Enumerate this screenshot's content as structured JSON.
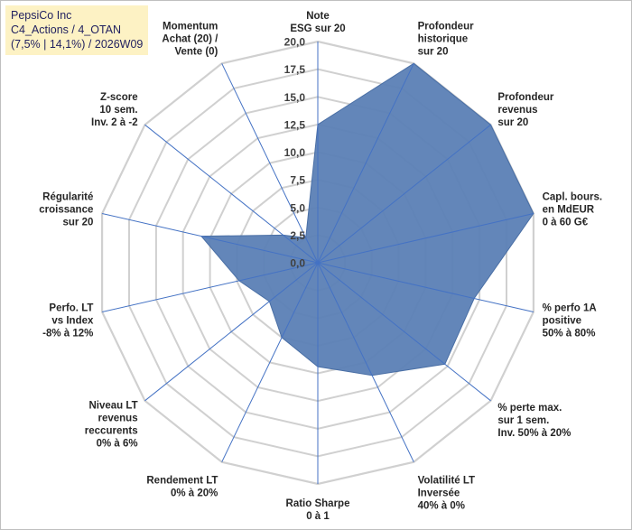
{
  "title_box": {
    "line1": "PepsiCo Inc",
    "line2": "C4_Actions / 4_OTAN",
    "line3": "(7,5% | 14,1%) / 2026W09"
  },
  "chart_data": {
    "type": "radar",
    "rmin": 0,
    "rmax": 20,
    "tick_step": 2.5,
    "tick_labels": [
      "0,0",
      "2,5",
      "5,0",
      "7,5",
      "10,0",
      "12,5",
      "15,0",
      "17,5",
      "20,0"
    ],
    "fill_color": "#5b80b5",
    "grid_color": "#d0d0d0",
    "axis_color": "#4472c4",
    "axes": [
      {
        "label": [
          "Note",
          "ESG sur 20"
        ],
        "value": 12.5
      },
      {
        "label": [
          "Profondeur",
          "historique",
          "sur 20"
        ],
        "value": 20
      },
      {
        "label": [
          "Profondeur",
          "revenus",
          "sur 20"
        ],
        "value": 20
      },
      {
        "label": [
          "Capl. bours.",
          "en MdEUR",
          "0 à 60 G€"
        ],
        "value": 20
      },
      {
        "label": [
          "% perfo 1A",
          "positive",
          "50% à 80%"
        ],
        "value": 14.5
      },
      {
        "label": [
          "% perte max.",
          "sur 1 sem.",
          "Inv. 50% à 20%"
        ],
        "value": 14.7
      },
      {
        "label": [
          "Volatilité LT",
          "Inversée",
          "40% à 0%"
        ],
        "value": 11.3
      },
      {
        "label": [
          "Ratio Sharpe",
          "0 à 1"
        ],
        "value": 9.4
      },
      {
        "label": [
          "Rendement LT",
          "0% à 20%"
        ],
        "value": 7.5
      },
      {
        "label": [
          "Niveau LT",
          "revenus",
          "reccurents",
          "0% à 6%"
        ],
        "value": 5.6
      },
      {
        "label": [
          "Perfo. LT",
          "vs Index",
          "-8% à 12%"
        ],
        "value": 7.3
      },
      {
        "label": [
          "Régularité",
          "croissance",
          "sur 20"
        ],
        "value": 10.8
      },
      {
        "label": [
          "Z-score",
          "10 sem.",
          "Inv. 2 à -2"
        ],
        "value": 4
      },
      {
        "label": [
          "Momentum",
          "Achat (20) /",
          "Vente (0)"
        ],
        "value": 2.5
      }
    ]
  }
}
